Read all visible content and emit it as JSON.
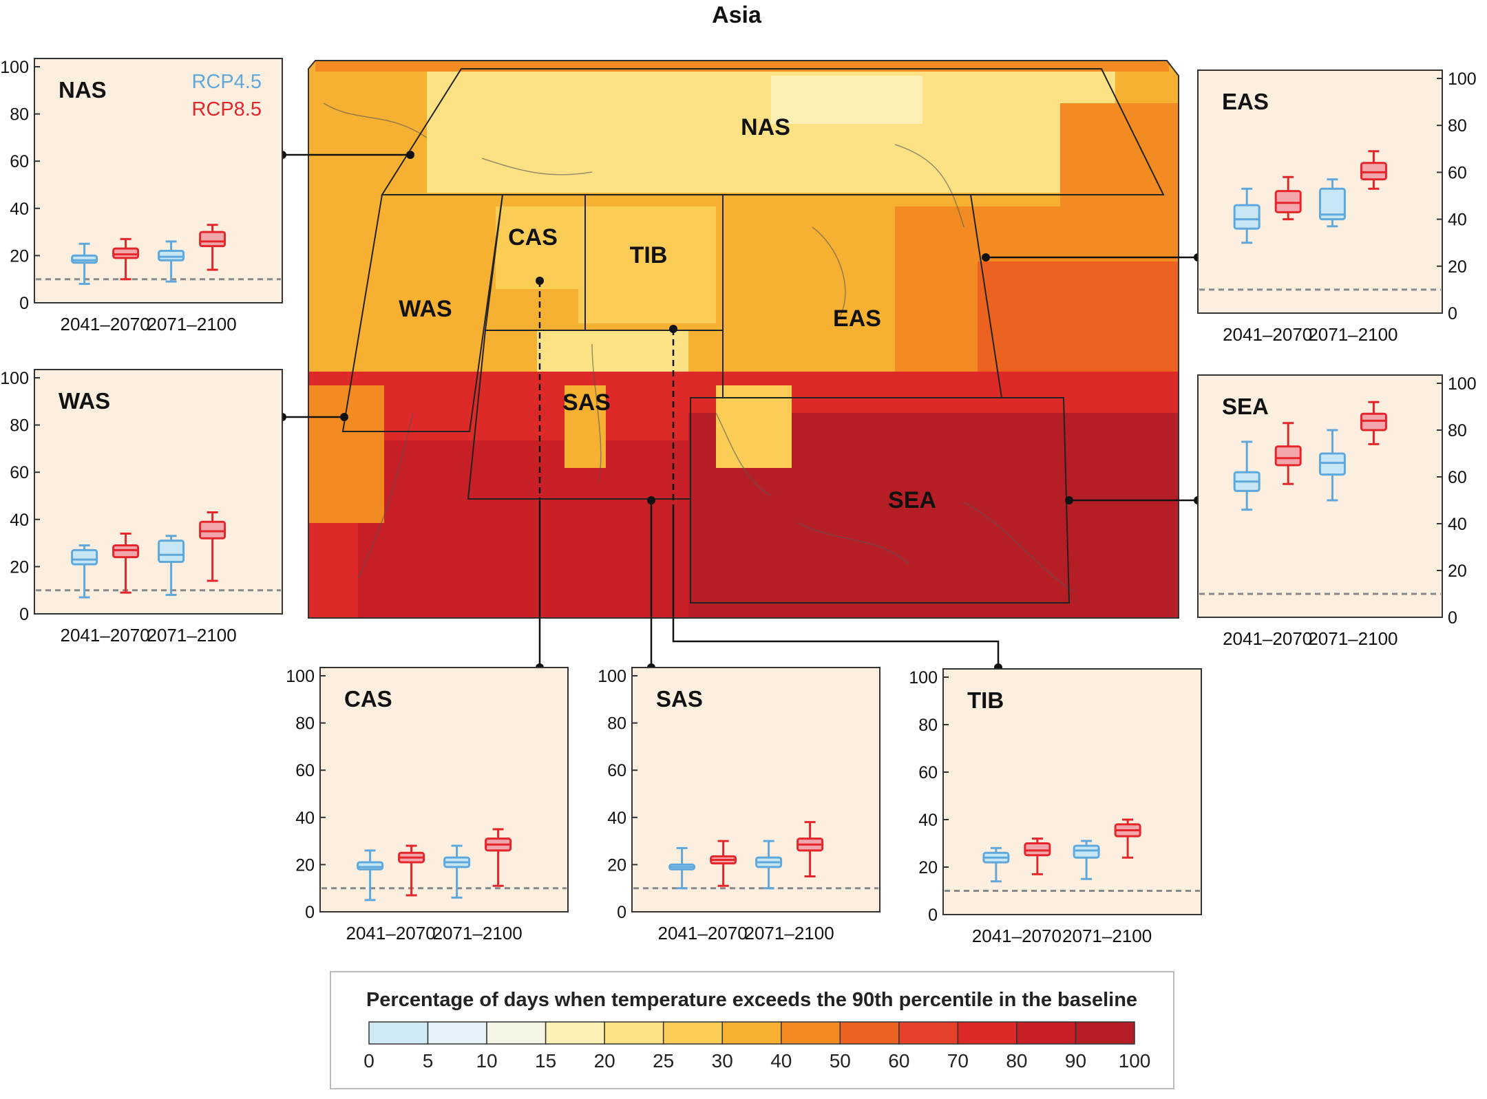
{
  "figure_title": "Asia",
  "legend": {
    "title": "Percentage of days when temperature exceeds the 90th percentile in the baseline",
    "ticks": [
      "0",
      "5",
      "10",
      "15",
      "20",
      "25",
      "30",
      "40",
      "50",
      "60",
      "70",
      "80",
      "90",
      "100"
    ],
    "colors": [
      "#cfe9f5",
      "#e5f3f8",
      "#f6f6e6",
      "#fdf0b4",
      "#fde285",
      "#fbcd57",
      "#f7b132",
      "#f28c22",
      "#ec6221",
      "#e4402a",
      "#dd2927",
      "#c91f26",
      "#b51e25"
    ]
  },
  "series_labels": {
    "rcp45": "RCP4.5",
    "rcp85": "RCP8.5"
  },
  "series_colors": {
    "rcp45": "#5ea8dc",
    "rcp85": "#e4262a",
    "rcp45_fill": "#c7e7f7",
    "rcp85_fill": "#f3a6ab"
  },
  "map": {
    "region_labels": [
      "NAS",
      "CAS",
      "TIB",
      "WAS",
      "EAS",
      "SAS",
      "SEA"
    ]
  },
  "chart_data": [
    {
      "type": "box",
      "region": "NAS",
      "categories": [
        "2041–2070",
        "2071–2100"
      ],
      "yticks": [
        "0",
        "20",
        "40",
        "60",
        "80",
        "100"
      ],
      "ylim": [
        0,
        100
      ],
      "baseline": 10,
      "series": [
        {
          "name": "RCP4.5",
          "boxes": [
            {
              "min": 8,
              "q1": 17,
              "median": 18,
              "q3": 20,
              "max": 25
            },
            {
              "min": 9,
              "q1": 18,
              "median": 19.5,
              "q3": 22,
              "max": 26
            }
          ]
        },
        {
          "name": "RCP8.5",
          "boxes": [
            {
              "min": 10,
              "q1": 19,
              "median": 20.5,
              "q3": 23,
              "max": 27
            },
            {
              "min": 14,
              "q1": 24,
              "median": 26,
              "q3": 30,
              "max": 33
            }
          ]
        }
      ]
    },
    {
      "type": "box",
      "region": "WAS",
      "categories": [
        "2041–2070",
        "2071–2100"
      ],
      "yticks": [
        "0",
        "20",
        "40",
        "60",
        "80",
        "100"
      ],
      "ylim": [
        0,
        100
      ],
      "baseline": 10,
      "series": [
        {
          "name": "RCP4.5",
          "boxes": [
            {
              "min": 7,
              "q1": 21,
              "median": 23,
              "q3": 27,
              "max": 29
            },
            {
              "min": 8,
              "q1": 22,
              "median": 25,
              "q3": 31,
              "max": 33
            }
          ]
        },
        {
          "name": "RCP8.5",
          "boxes": [
            {
              "min": 9,
              "q1": 24,
              "median": 27,
              "q3": 29,
              "max": 34
            },
            {
              "min": 14,
              "q1": 32,
              "median": 35,
              "q3": 39,
              "max": 43
            }
          ]
        }
      ]
    },
    {
      "type": "box",
      "region": "EAS",
      "categories": [
        "2041–2070",
        "2071–2100"
      ],
      "yticks": [
        "0",
        "20",
        "40",
        "60",
        "80",
        "100"
      ],
      "ylim": [
        0,
        100
      ],
      "baseline": 10,
      "series": [
        {
          "name": "RCP4.5",
          "boxes": [
            {
              "min": 30,
              "q1": 36,
              "median": 40,
              "q3": 46,
              "max": 53
            },
            {
              "min": 37,
              "q1": 40,
              "median": 42,
              "q3": 53,
              "max": 57
            }
          ]
        },
        {
          "name": "RCP8.5",
          "boxes": [
            {
              "min": 40,
              "q1": 43,
              "median": 47,
              "q3": 52,
              "max": 58
            },
            {
              "min": 53,
              "q1": 57,
              "median": 60,
              "q3": 64,
              "max": 69
            }
          ]
        }
      ]
    },
    {
      "type": "box",
      "region": "SEA",
      "categories": [
        "2041–2070",
        "2071–2100"
      ],
      "yticks": [
        "0",
        "20",
        "40",
        "60",
        "80",
        "100"
      ],
      "ylim": [
        0,
        100
      ],
      "baseline": 10,
      "series": [
        {
          "name": "RCP4.5",
          "boxes": [
            {
              "min": 46,
              "q1": 54,
              "median": 58,
              "q3": 62,
              "max": 75
            },
            {
              "min": 50,
              "q1": 61,
              "median": 66,
              "q3": 70,
              "max": 80
            }
          ]
        },
        {
          "name": "RCP8.5",
          "boxes": [
            {
              "min": 57,
              "q1": 65,
              "median": 68,
              "q3": 73,
              "max": 83
            },
            {
              "min": 74,
              "q1": 80,
              "median": 84,
              "q3": 87,
              "max": 92
            }
          ]
        }
      ]
    },
    {
      "type": "box",
      "region": "CAS",
      "categories": [
        "2041–2070",
        "2071–2100"
      ],
      "yticks": [
        "0",
        "20",
        "40",
        "60",
        "80",
        "100"
      ],
      "ylim": [
        0,
        100
      ],
      "baseline": 10,
      "series": [
        {
          "name": "RCP4.5",
          "boxes": [
            {
              "min": 5,
              "q1": 18,
              "median": 19,
              "q3": 21,
              "max": 26
            },
            {
              "min": 6,
              "q1": 19,
              "median": 21,
              "q3": 23,
              "max": 28
            }
          ]
        },
        {
          "name": "RCP8.5",
          "boxes": [
            {
              "min": 7,
              "q1": 21,
              "median": 23,
              "q3": 25,
              "max": 28
            },
            {
              "min": 11,
              "q1": 26,
              "median": 28.5,
              "q3": 31,
              "max": 35
            }
          ]
        }
      ]
    },
    {
      "type": "box",
      "region": "SAS",
      "categories": [
        "2041–2070",
        "2071–2100"
      ],
      "yticks": [
        "0",
        "20",
        "40",
        "60",
        "80",
        "100"
      ],
      "ylim": [
        0,
        100
      ],
      "baseline": 10,
      "series": [
        {
          "name": "RCP4.5",
          "boxes": [
            {
              "min": 10,
              "q1": 18,
              "median": 19,
              "q3": 20,
              "max": 27
            },
            {
              "min": 10,
              "q1": 19,
              "median": 21,
              "q3": 23,
              "max": 30
            }
          ]
        },
        {
          "name": "RCP8.5",
          "boxes": [
            {
              "min": 11,
              "q1": 20.5,
              "median": 22,
              "q3": 23.5,
              "max": 30
            },
            {
              "min": 15,
              "q1": 26,
              "median": 28.5,
              "q3": 31,
              "max": 38
            }
          ]
        }
      ]
    },
    {
      "type": "box",
      "region": "TIB",
      "categories": [
        "2041–2070",
        "2071–2100"
      ],
      "yticks": [
        "0",
        "20",
        "40",
        "60",
        "80",
        "100"
      ],
      "ylim": [
        0,
        100
      ],
      "baseline": 10,
      "series": [
        {
          "name": "RCP4.5",
          "boxes": [
            {
              "min": 14,
              "q1": 22,
              "median": 24,
              "q3": 26,
              "max": 28
            },
            {
              "min": 15,
              "q1": 24,
              "median": 27,
              "q3": 29,
              "max": 31
            }
          ]
        },
        {
          "name": "RCP8.5",
          "boxes": [
            {
              "min": 17,
              "q1": 25,
              "median": 27,
              "q3": 30,
              "max": 32
            },
            {
              "min": 24,
              "q1": 33,
              "median": 35.5,
              "q3": 38,
              "max": 40
            }
          ]
        }
      ]
    }
  ]
}
